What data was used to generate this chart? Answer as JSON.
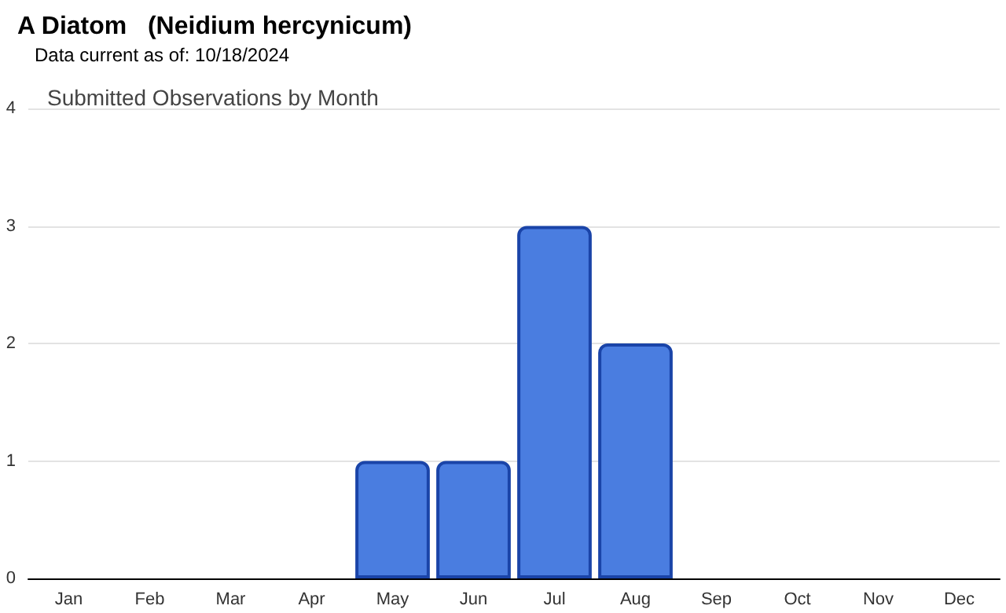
{
  "chart_data": {
    "type": "bar",
    "title": "A Diatom   (Neidium hercynicum)",
    "subtitle": "Data current as of: 10/18/2024",
    "annotations": [
      "Submitted Observations by Month"
    ],
    "categories": [
      "Jan",
      "Feb",
      "Mar",
      "Apr",
      "May",
      "Jun",
      "Jul",
      "Aug",
      "Sep",
      "Oct",
      "Nov",
      "Dec"
    ],
    "values": [
      0,
      0,
      0,
      0,
      1,
      1,
      3,
      2,
      0,
      0,
      0,
      0
    ],
    "color": "#4a7de0",
    "ylim": [
      0,
      4
    ],
    "yticks": [
      0,
      1,
      2,
      3,
      4
    ],
    "grid": "y"
  }
}
